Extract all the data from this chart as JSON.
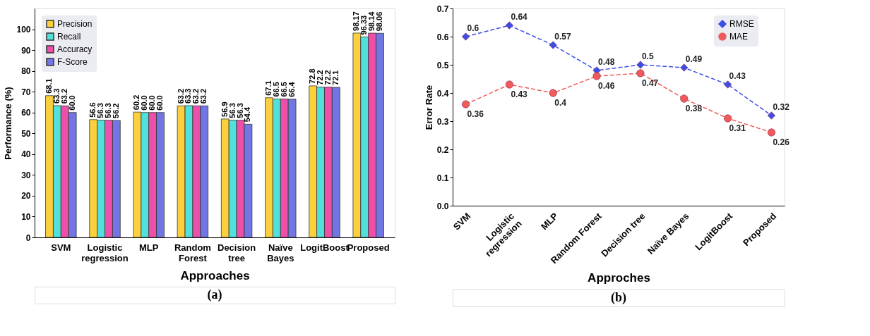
{
  "chart_data": [
    {
      "type": "bar",
      "xlabel": "Approaches",
      "ylabel": "Performance (%)",
      "categories": [
        "SVM",
        "Logistic\nregression",
        "MLP",
        "Random\nForest",
        "Decision\ntree",
        "Naïve\nBayes",
        "LogitBoost",
        "Proposed"
      ],
      "series": [
        {
          "name": "Precision",
          "color": "#fcd03c",
          "values": [
            68.1,
            56.6,
            60.2,
            63.2,
            56.9,
            67.1,
            72.8,
            98.17
          ],
          "value_labels": [
            "68.1",
            "56.6",
            "60.2",
            "63.2",
            "56.9",
            "67.1",
            "72.8",
            "98.17"
          ]
        },
        {
          "name": "Recall",
          "color": "#52e0dc",
          "values": [
            63.3,
            56.3,
            60.0,
            63.3,
            56.3,
            66.5,
            72.2,
            96.33
          ],
          "value_labels": [
            "63.3",
            "56.3",
            "60.0",
            "63.3",
            "56.3",
            "66.5",
            "72.2",
            "96.33"
          ]
        },
        {
          "name": "Accuracy",
          "color": "#ee4fa8",
          "values": [
            63.2,
            56.3,
            60.0,
            63.2,
            56.3,
            66.5,
            72.2,
            98.14
          ],
          "value_labels": [
            "63.2",
            "56.3",
            "60.0",
            "63.2",
            "56.3",
            "66.5",
            "72.2",
            "98.14"
          ]
        },
        {
          "name": "F-Score",
          "color": "#7276e4",
          "values": [
            60.0,
            56.2,
            60.0,
            63.2,
            54.4,
            66.4,
            72.1,
            98.06
          ],
          "value_labels": [
            "60.0",
            "56.2",
            "60.0",
            "63.2",
            "54.4",
            "66.4",
            "72.1",
            "98.06"
          ]
        }
      ],
      "ylim": [
        0,
        110
      ],
      "yticks": [
        0,
        10,
        20,
        30,
        40,
        50,
        60,
        70,
        80,
        90,
        100
      ],
      "grid": false,
      "legend": "top left",
      "annotations": [
        "(a)"
      ]
    },
    {
      "type": "line",
      "xlabel": "Approches",
      "ylabel": "Error Rate",
      "categories": [
        "SVM",
        "Logistic\nregression",
        "MLP",
        "Random Forest",
        "Decision tree",
        "Naïve Bayes",
        "LogitBoost",
        "Proposed"
      ],
      "series": [
        {
          "name": "RMSE",
          "color": "#3b4fe6",
          "marker": "diamond",
          "values": [
            0.6,
            0.64,
            0.57,
            0.48,
            0.5,
            0.49,
            0.43,
            0.32
          ]
        },
        {
          "name": "MAE",
          "color": "#f05a5a",
          "marker": "circle",
          "values": [
            0.36,
            0.43,
            0.4,
            0.46,
            0.47,
            0.38,
            0.31,
            0.26
          ]
        }
      ],
      "ylim": [
        0,
        0.7
      ],
      "yticks": [
        {
          "value": 0,
          "label": "0.0"
        },
        0.1,
        0.2,
        0.3,
        0.4,
        0.5,
        0.6,
        0.7
      ],
      "data_labels": true,
      "line_style": "dashed",
      "grid": false,
      "legend": "top right",
      "annotations": [
        "(b)"
      ]
    }
  ]
}
